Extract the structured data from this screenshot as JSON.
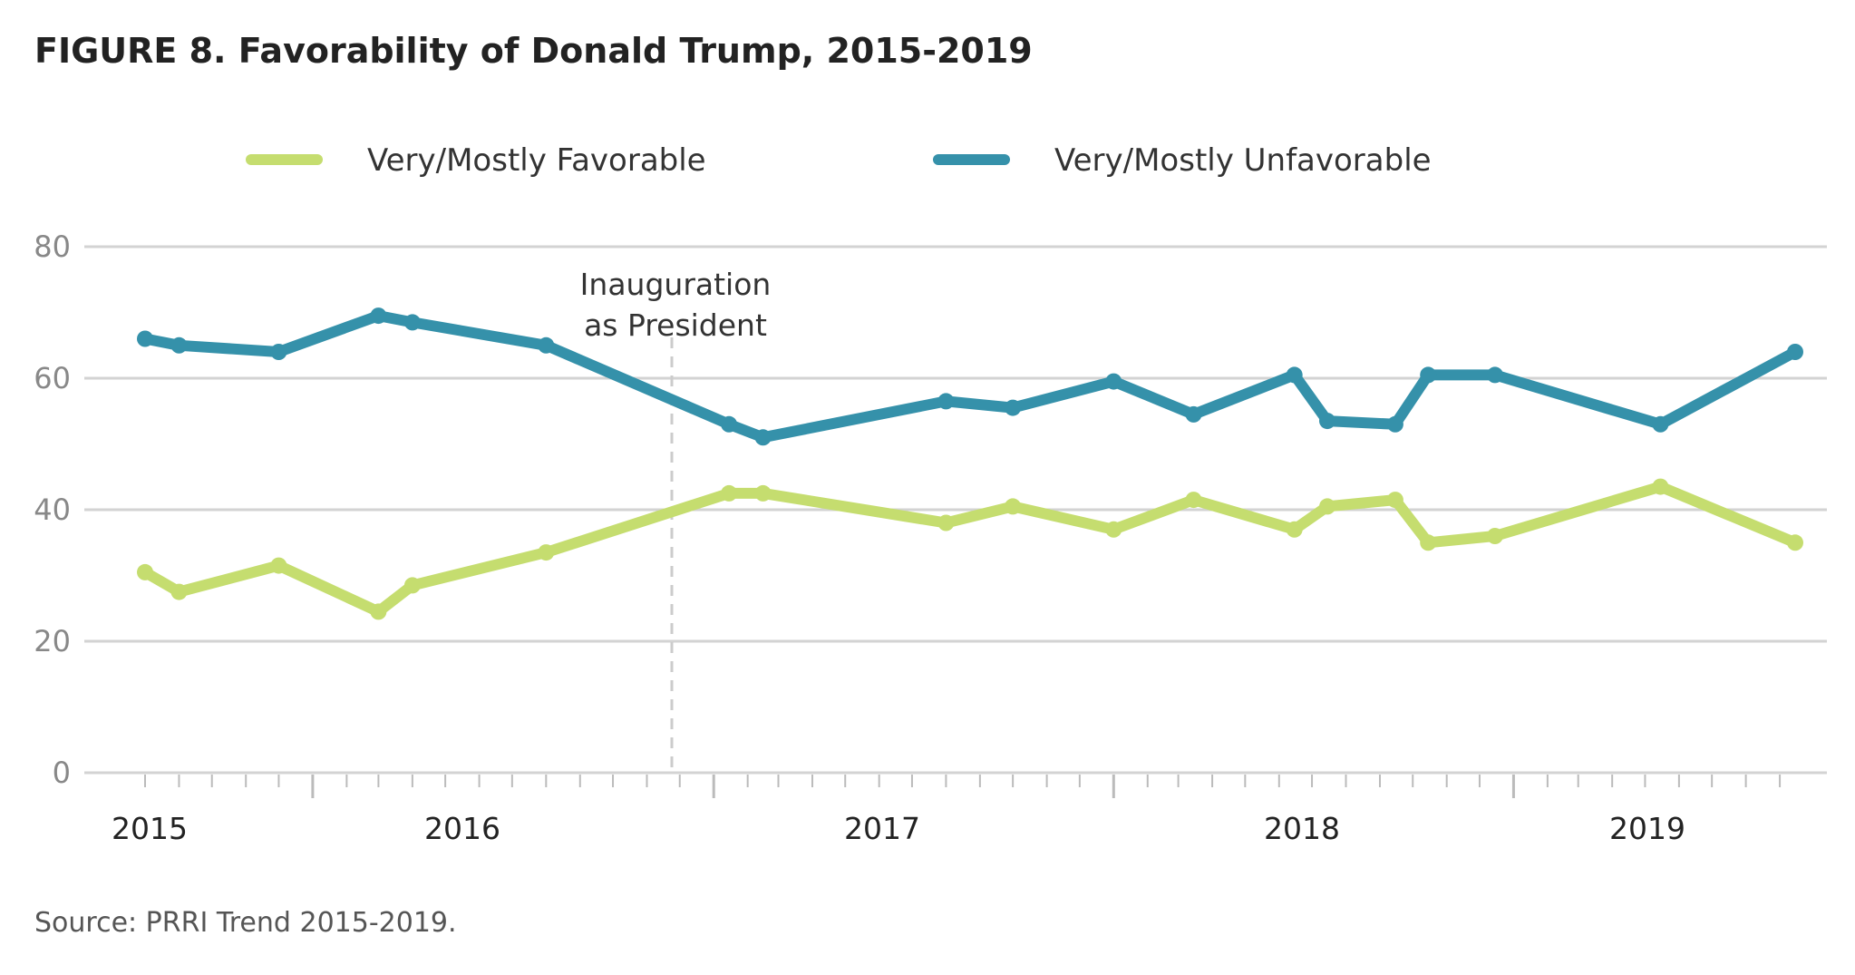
{
  "title": "FIGURE 8.  Favorability of Donald Trump, 2015-2019",
  "source": "Source: PRRI Trend 2015-2019.",
  "chart_data": {
    "type": "line",
    "title": "FIGURE 8.  Favorability of Donald Trump, 2015-2019",
    "xlabel": "",
    "ylabel": "",
    "ylim": [
      0,
      80
    ],
    "yticks": [
      0,
      20,
      40,
      60,
      80
    ],
    "xlim": [
      "2015-07-01",
      "2019-10-01"
    ],
    "x_tick_labels": [
      {
        "label": "2015",
        "x": "2015-07-15"
      },
      {
        "label": "2016",
        "x": "2016-06-01"
      },
      {
        "label": "2017",
        "x": "2017-06-01"
      },
      {
        "label": "2018",
        "x": "2018-06-01"
      },
      {
        "label": "2019",
        "x": "2019-04-01"
      }
    ],
    "grid": true,
    "legend_position": "top",
    "annotation": {
      "lines": [
        "Inauguration",
        "as President"
      ],
      "x": "2017-01-20"
    },
    "x": [
      "2015-08-01",
      "2015-09-01",
      "2015-12-01",
      "2016-03-01",
      "2016-04-01",
      "2016-08-01",
      "2017-01-15",
      "2017-02-15",
      "2017-08-01",
      "2017-10-01",
      "2018-01-01",
      "2018-03-15",
      "2018-06-15",
      "2018-07-15",
      "2018-09-15",
      "2018-10-15",
      "2018-12-15",
      "2019-05-15",
      "2019-09-15"
    ],
    "series": [
      {
        "name": "Very/Mostly Favorable",
        "color": "#c5dd6f",
        "values": [
          30.5,
          27.5,
          31.5,
          24.5,
          28.5,
          33.5,
          42.5,
          42.5,
          38,
          40.5,
          37,
          41.5,
          37,
          40.5,
          41.5,
          35,
          36,
          43.5,
          35
        ]
      },
      {
        "name": "Very/Mostly Unfavorable",
        "color": "#3591aa",
        "values": [
          66,
          65,
          64,
          69.5,
          68.5,
          65,
          53,
          51,
          56.5,
          55.5,
          59.5,
          54.5,
          60.5,
          53.5,
          53,
          60.5,
          60.5,
          53,
          64
        ]
      }
    ]
  },
  "colors": {
    "grid": "#d3d3d3",
    "axis": "#bbbbbb",
    "annotation_line": "#cccccc"
  }
}
